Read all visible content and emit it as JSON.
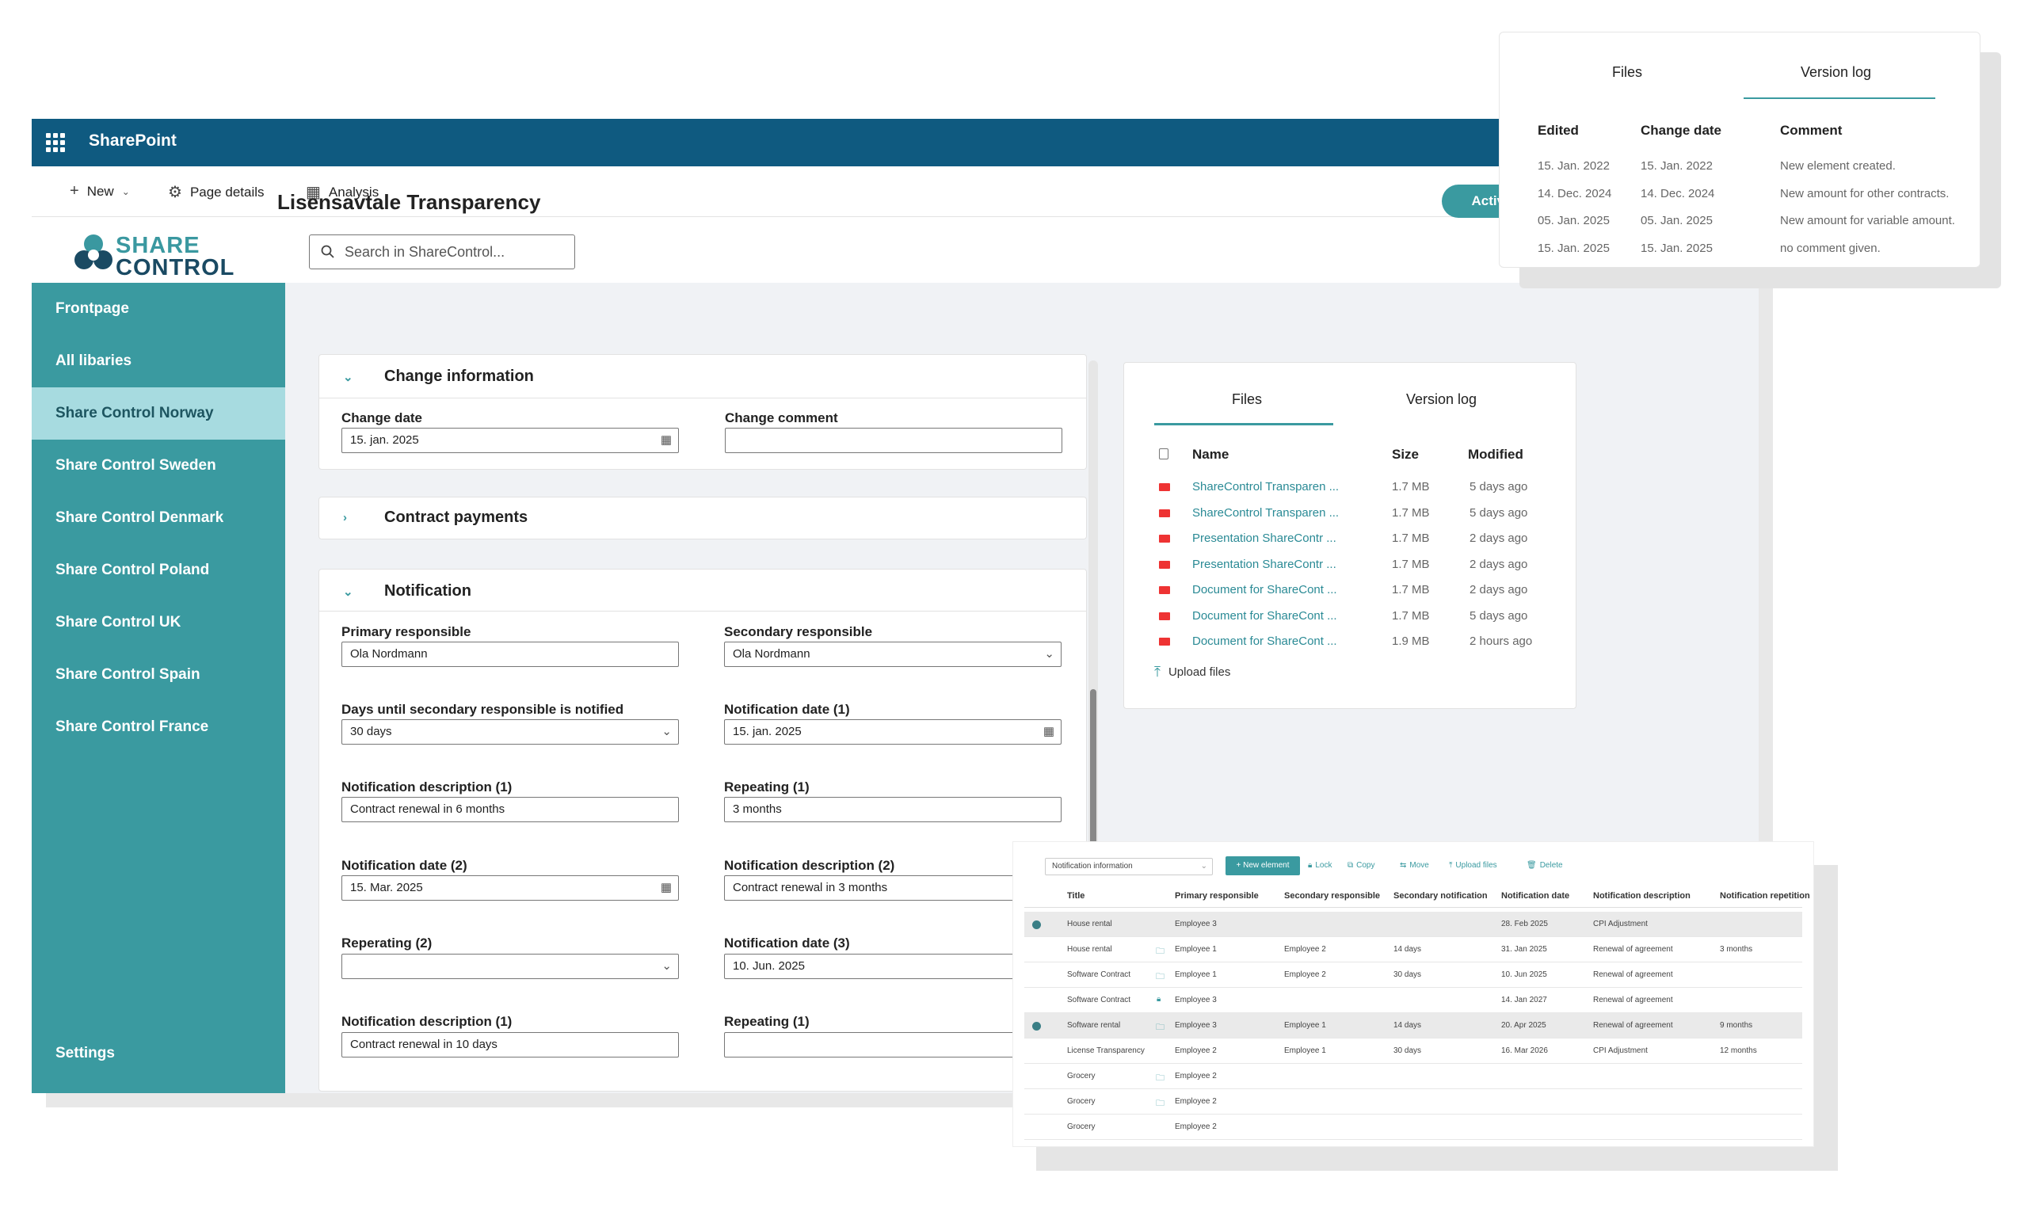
{
  "app": {
    "name": "SharePoint"
  },
  "commands": [
    {
      "icon": "plus-icon",
      "label": "New"
    },
    {
      "icon": "gear-icon",
      "label": "Page details"
    },
    {
      "icon": "chart-icon",
      "label": "Analysis"
    }
  ],
  "logo": {
    "line1": "SHARE",
    "line2": "CONTROL"
  },
  "search": {
    "placeholder": "Search in ShareControl..."
  },
  "sidebar": {
    "items": [
      "Frontpage",
      "All libaries",
      "Share Control Norway",
      "Share Control Sweden",
      "Share Control Denmark",
      "Share Control Poland",
      "Share Control UK",
      "Share Control Spain",
      "Share Control France"
    ],
    "active_index": 2,
    "settings": "Settings"
  },
  "page": {
    "title": "Lisensavtale Transparency",
    "status": "Active"
  },
  "change_info": {
    "title": "Change information",
    "change_date_label": "Change date",
    "change_date_value": "15. jan. 2025",
    "change_comment_label": "Change comment",
    "change_comment_value": ""
  },
  "contract_payments": {
    "title": "Contract payments"
  },
  "notification": {
    "title": "Notification",
    "fields": [
      {
        "label": "Primary responsible",
        "value": "Ola Nordmann",
        "trail": ""
      },
      {
        "label": "Secondary responsible",
        "value": "Ola Nordmann",
        "trail": "⌄"
      },
      {
        "label": "Days until secondary responsible is notified",
        "value": "30 days",
        "trail": "⌄"
      },
      {
        "label": "Notification date (1)",
        "value": "15. jan. 2025",
        "trail": "cal"
      },
      {
        "label": "Notification description (1)",
        "value": "Contract renewal in 6 months",
        "trail": ""
      },
      {
        "label": "Repeating (1)",
        "value": "3 months",
        "trail": ""
      },
      {
        "label": "Notification date (2)",
        "value": "15. Mar. 2025",
        "trail": "cal"
      },
      {
        "label": "Notification description (2)",
        "value": "Contract renewal in 3 months",
        "trail": ""
      },
      {
        "label": "Reperating (2)",
        "value": "",
        "trail": "⌄"
      },
      {
        "label": "Notification date (3)",
        "value": "10. Jun. 2025",
        "trail": ""
      },
      {
        "label": "Notification description (1)",
        "value": "Contract renewal in 10 days",
        "trail": ""
      },
      {
        "label": "Repeating (1)",
        "value": "",
        "trail": ""
      }
    ]
  },
  "files_panel": {
    "tabs": [
      "Files",
      "Version log"
    ],
    "columns": [
      "Name",
      "Size",
      "Modified"
    ],
    "files": [
      {
        "name": "ShareControl Transparen ...",
        "size": "1.7 MB",
        "modified": "5 days ago"
      },
      {
        "name": "ShareControl Transparen ...",
        "size": "1.7 MB",
        "modified": "5 days ago"
      },
      {
        "name": "Presentation ShareContr ...",
        "size": "1.7 MB",
        "modified": "2 days ago"
      },
      {
        "name": "Presentation ShareContr ...",
        "size": "1.7 MB",
        "modified": "2 days ago"
      },
      {
        "name": "Document for ShareCont ...",
        "size": "1.7 MB",
        "modified": "2 days ago"
      },
      {
        "name": "Document for ShareCont ...",
        "size": "1.7 MB",
        "modified": "5 days ago"
      },
      {
        "name": "Document for ShareCont ...",
        "size": "1.9 MB",
        "modified": "2 hours ago"
      }
    ],
    "upload": "Upload files"
  },
  "version_log": {
    "tabs": [
      "Files",
      "Version log"
    ],
    "columns": [
      "Edited",
      "Change date",
      "Comment"
    ],
    "rows": [
      {
        "edited": "15. Jan. 2022",
        "change_date": "15. Jan. 2022",
        "comment": "New element created."
      },
      {
        "edited": "14. Dec. 2024",
        "change_date": "14. Dec. 2024",
        "comment": "New amount for other contracts."
      },
      {
        "edited": "05. Jan. 2025",
        "change_date": "05. Jan. 2025",
        "comment": "New amount for variable amount."
      },
      {
        "edited": "15. Jan. 2025",
        "change_date": "15. Jan. 2025",
        "comment": "no comment given."
      }
    ]
  },
  "grid": {
    "dropdown": "Notification information",
    "toolbar": [
      "New element",
      "Lock",
      "Copy",
      "Move",
      "Upload files",
      "Delete"
    ],
    "columns": [
      "Title",
      "Primary responsible",
      "Secondary responsible",
      "Secondary notification",
      "Notification date",
      "Notification description",
      "Notification repetition"
    ],
    "rows": [
      {
        "sel": true,
        "icon": "",
        "title": "House rental",
        "primary": "Employee 3",
        "secondary": "",
        "sec_notif": "",
        "date": "28. Feb 2025",
        "desc": "CPI Adjustment",
        "rep": ""
      },
      {
        "sel": false,
        "icon": "folder",
        "title": "House rental",
        "primary": "Employee 1",
        "secondary": "Employee 2",
        "sec_notif": "14 days",
        "date": "31. Jan 2025",
        "desc": "Renewal of agreement",
        "rep": "3 months"
      },
      {
        "sel": false,
        "icon": "folder",
        "title": "Software Contract",
        "primary": "Employee 1",
        "secondary": "Employee 2",
        "sec_notif": "30 days",
        "date": "10. Jun 2025",
        "desc": "Renewal of agreement",
        "rep": ""
      },
      {
        "sel": false,
        "icon": "lock",
        "title": "Software Contract",
        "primary": "Employee 3",
        "secondary": "",
        "sec_notif": "",
        "date": "14. Jan 2027",
        "desc": "Renewal of agreement",
        "rep": ""
      },
      {
        "sel": true,
        "icon": "folder",
        "title": "Software rental",
        "primary": "Employee 3",
        "secondary": "Employee 1",
        "sec_notif": "14 days",
        "date": "20. Apr 2025",
        "desc": "Renewal of agreement",
        "rep": "9 months"
      },
      {
        "sel": false,
        "icon": "",
        "title": "License Transparency",
        "primary": "Employee 2",
        "secondary": "Employee 1",
        "sec_notif": "30 days",
        "date": "16. Mar 2026",
        "desc": "CPI Adjustment",
        "rep": "12 months"
      },
      {
        "sel": false,
        "icon": "folder",
        "title": "Grocery",
        "primary": "Employee 2",
        "secondary": "",
        "sec_notif": "",
        "date": "",
        "desc": "",
        "rep": ""
      },
      {
        "sel": false,
        "icon": "folder",
        "title": "Grocery",
        "primary": "Employee 2",
        "secondary": "",
        "sec_notif": "",
        "date": "",
        "desc": "",
        "rep": ""
      },
      {
        "sel": false,
        "icon": "",
        "title": "Grocery",
        "primary": "Employee 2",
        "secondary": "",
        "sec_notif": "",
        "date": "",
        "desc": "",
        "rep": ""
      }
    ]
  }
}
